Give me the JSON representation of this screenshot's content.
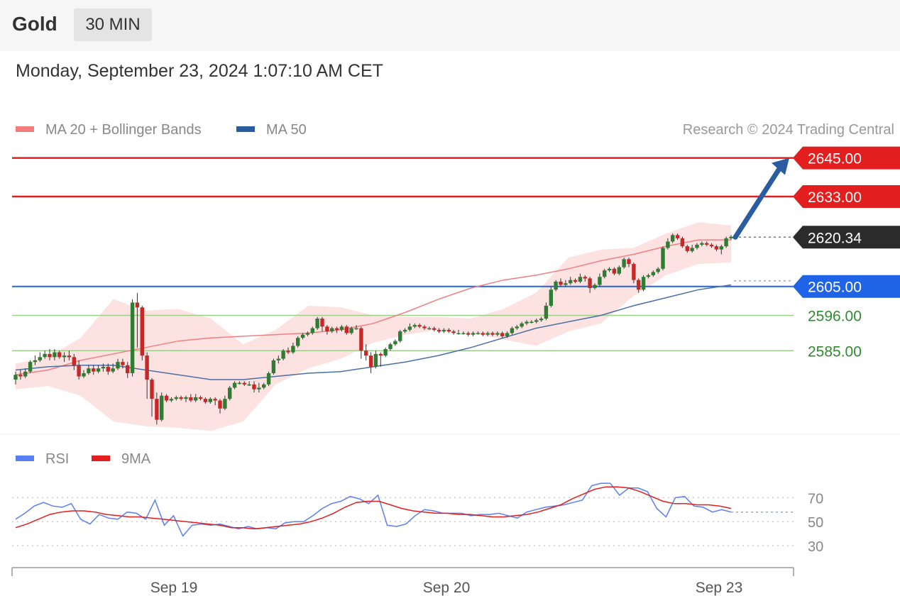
{
  "header": {
    "instrument": "Gold",
    "timeframe": "30 MIN"
  },
  "timestamp": "Monday, September 23, 2024 1:07:10 AM CET",
  "legend": {
    "bollinger": "MA 20 + Bollinger Bands",
    "ma50": "MA 50",
    "rsi": "RSI",
    "rsi_ma": "9MA"
  },
  "credit": "Research © 2024 Trading Central",
  "colors": {
    "bullish": "#2e7d32",
    "bearish": "#c62828",
    "resistance": "#e31e1e",
    "support_pivot": "#1f63e6",
    "support": "#2e8b2e",
    "bands": "#fde2e2",
    "ma20": "#f08080",
    "ma50": "#4a6fa5",
    "rsi": "#5b7ff2",
    "rsi_ma": "#e31e1e",
    "last_price": "#2b2b2b"
  },
  "chart_data": [
    {
      "type": "candlestick",
      "instrument": "Gold",
      "interval": "30 MIN",
      "ylim": [
        2559,
        2650
      ],
      "x_ticks": [
        "Sep 19",
        "Sep 20",
        "Sep 23"
      ],
      "levels": [
        {
          "value": 2645.0,
          "label": "2645.00",
          "kind": "resistance"
        },
        {
          "value": 2633.0,
          "label": "2633.00",
          "kind": "resistance"
        },
        {
          "value": 2620.34,
          "label": "2620.34",
          "kind": "last"
        },
        {
          "value": 2605.0,
          "label": "2605.00",
          "kind": "pivot"
        },
        {
          "value": 2596.0,
          "label": "2596.00",
          "kind": "support"
        },
        {
          "value": 2585.0,
          "label": "2585.00",
          "kind": "support"
        }
      ],
      "forecast": {
        "from": 2620.34,
        "to": 2645.0
      },
      "candles": [
        [
          2576,
          2577.5,
          2574.5,
          2578.5
        ],
        [
          2577.5,
          2577,
          2576,
          2579
        ],
        [
          2577,
          2578.5,
          2576.5,
          2579.5
        ],
        [
          2578.5,
          2581.5,
          2578,
          2582
        ],
        [
          2581.5,
          2582,
          2580.5,
          2583.5
        ],
        [
          2582,
          2583,
          2581.5,
          2584.5
        ],
        [
          2583,
          2584,
          2582.5,
          2585
        ],
        [
          2584,
          2583,
          2582,
          2585.5
        ],
        [
          2583,
          2584.5,
          2582,
          2585.5
        ],
        [
          2584.5,
          2583,
          2582.5,
          2585
        ],
        [
          2583,
          2583.5,
          2581.5,
          2584.5
        ],
        [
          2583.5,
          2583,
          2582,
          2585
        ],
        [
          2583,
          2580.5,
          2579,
          2584
        ],
        [
          2580.5,
          2577,
          2576,
          2582
        ],
        [
          2577,
          2578,
          2576.5,
          2579
        ],
        [
          2578,
          2579.5,
          2577.5,
          2580.5
        ],
        [
          2579.5,
          2578.5,
          2577.5,
          2580.5
        ],
        [
          2578.5,
          2579.5,
          2578,
          2580.5
        ],
        [
          2579.5,
          2580,
          2578.5,
          2581
        ],
        [
          2580,
          2578.5,
          2577.5,
          2581
        ],
        [
          2578.5,
          2579.5,
          2578,
          2581
        ],
        [
          2579.5,
          2581.5,
          2579,
          2582.5
        ],
        [
          2581.5,
          2580.5,
          2579.5,
          2582.5
        ],
        [
          2580.5,
          2578,
          2576.5,
          2581.5
        ],
        [
          2578,
          2600,
          2577,
          2601
        ],
        [
          2600,
          2598.5,
          2586,
          2603
        ],
        [
          2598.5,
          2583.5,
          2582,
          2599
        ],
        [
          2583.5,
          2576,
          2570,
          2584.5
        ],
        [
          2576,
          2570,
          2564.5,
          2576.5
        ],
        [
          2570,
          2563.5,
          2562,
          2572
        ],
        [
          2563.5,
          2571,
          2563,
          2572
        ],
        [
          2571,
          2569.5,
          2569,
          2571.5
        ],
        [
          2569.5,
          2570,
          2569,
          2570.5
        ],
        [
          2570,
          2570.5,
          2569.5,
          2571
        ],
        [
          2570.5,
          2570,
          2569.5,
          2571
        ],
        [
          2570,
          2570.5,
          2569,
          2571
        ],
        [
          2570.5,
          2569.5,
          2569,
          2571.5
        ],
        [
          2569.5,
          2570.5,
          2569,
          2571.5
        ],
        [
          2570.5,
          2570,
          2569.5,
          2571
        ],
        [
          2570,
          2569,
          2568.5,
          2570.5
        ],
        [
          2569,
          2570,
          2568.5,
          2570.5
        ],
        [
          2570,
          2569.5,
          2568,
          2570.5
        ],
        [
          2569.5,
          2567,
          2565.5,
          2570
        ],
        [
          2567,
          2570,
          2566.5,
          2571
        ],
        [
          2570,
          2573.5,
          2569.5,
          2574
        ],
        [
          2573.5,
          2575,
          2573,
          2575.5
        ],
        [
          2575,
          2575,
          2574.5,
          2575.5
        ],
        [
          2575,
          2574.5,
          2574,
          2575.5
        ],
        [
          2574.5,
          2574.5,
          2574,
          2575.5
        ],
        [
          2574.5,
          2573,
          2572,
          2575.5
        ],
        [
          2573,
          2573.5,
          2572,
          2575
        ],
        [
          2573.5,
          2574.5,
          2573,
          2575
        ],
        [
          2574.5,
          2578,
          2574,
          2578.5
        ],
        [
          2578,
          2582,
          2577.5,
          2582.5
        ],
        [
          2582,
          2582.5,
          2581,
          2583.5
        ],
        [
          2582.5,
          2585,
          2582,
          2585.5
        ],
        [
          2585,
          2584.5,
          2584,
          2586
        ],
        [
          2584.5,
          2586.5,
          2584,
          2587.5
        ],
        [
          2586.5,
          2589,
          2586,
          2589.5
        ],
        [
          2589,
          2590,
          2588.5,
          2590.5
        ],
        [
          2590,
          2590.5,
          2589.5,
          2591
        ],
        [
          2590.5,
          2592,
          2590,
          2592.5
        ],
        [
          2592,
          2595,
          2591.5,
          2595.5
        ],
        [
          2595,
          2592.5,
          2591,
          2595.5
        ],
        [
          2592.5,
          2591,
          2590,
          2593
        ],
        [
          2591,
          2592,
          2590.5,
          2592.5
        ],
        [
          2592,
          2591.5,
          2590.5,
          2592.5
        ],
        [
          2591.5,
          2592.5,
          2591,
          2593
        ],
        [
          2592.5,
          2590.5,
          2590,
          2593
        ],
        [
          2590.5,
          2592,
          2590,
          2592.5
        ],
        [
          2592,
          2592,
          2591.5,
          2593
        ],
        [
          2592,
          2585,
          2582.5,
          2592.5
        ],
        [
          2585,
          2583.5,
          2582,
          2587
        ],
        [
          2583.5,
          2580,
          2578,
          2584.5
        ],
        [
          2580,
          2584,
          2579.5,
          2585
        ],
        [
          2584,
          2583.5,
          2580,
          2584.5
        ],
        [
          2583.5,
          2585.5,
          2583,
          2586
        ],
        [
          2585.5,
          2587,
          2585,
          2587.5
        ],
        [
          2587,
          2588,
          2586.5,
          2588.5
        ],
        [
          2588,
          2591,
          2587.5,
          2591.5
        ],
        [
          2591,
          2591.5,
          2590.5,
          2592
        ],
        [
          2591.5,
          2592.5,
          2591,
          2593.5
        ],
        [
          2592.5,
          2593,
          2592,
          2593.5
        ],
        [
          2593,
          2592.5,
          2592,
          2593.5
        ],
        [
          2592.5,
          2592,
          2591.5,
          2593
        ],
        [
          2592,
          2592,
          2591.5,
          2592.5
        ],
        [
          2592,
          2591.5,
          2591,
          2592.5
        ],
        [
          2591.5,
          2591,
          2590.5,
          2592
        ],
        [
          2591,
          2591.5,
          2590.5,
          2592
        ],
        [
          2591.5,
          2591,
          2590.5,
          2592
        ],
        [
          2591,
          2590.5,
          2590,
          2591.5
        ],
        [
          2590.5,
          2590.5,
          2590,
          2591.5
        ],
        [
          2590.5,
          2590.5,
          2590,
          2591
        ],
        [
          2590.5,
          2590,
          2589.5,
          2591
        ],
        [
          2590,
          2590.5,
          2589.5,
          2591
        ],
        [
          2590.5,
          2590.5,
          2590,
          2591
        ],
        [
          2590.5,
          2590,
          2589.5,
          2591
        ],
        [
          2590,
          2590.5,
          2589.5,
          2591
        ],
        [
          2590.5,
          2590,
          2589.5,
          2591
        ],
        [
          2590,
          2590.5,
          2589.5,
          2591
        ],
        [
          2590.5,
          2589.5,
          2589,
          2591
        ],
        [
          2589.5,
          2590.5,
          2589,
          2591
        ],
        [
          2590.5,
          2592,
          2590,
          2592.5
        ],
        [
          2592,
          2592.5,
          2591.5,
          2593
        ],
        [
          2592.5,
          2593.5,
          2592,
          2594
        ],
        [
          2593.5,
          2594,
          2593,
          2594.5
        ],
        [
          2594,
          2594,
          2593.5,
          2594.5
        ],
        [
          2594,
          2594.5,
          2593.5,
          2595
        ],
        [
          2594.5,
          2595,
          2594,
          2595.5
        ],
        [
          2595,
          2599,
          2594.5,
          2600
        ],
        [
          2599,
          2604,
          2598.5,
          2605
        ],
        [
          2604,
          2606.5,
          2603.5,
          2607
        ],
        [
          2606.5,
          2605.5,
          2605,
          2607.5
        ],
        [
          2605.5,
          2606,
          2605,
          2607
        ],
        [
          2606,
          2607,
          2605.5,
          2608
        ],
        [
          2607,
          2606.5,
          2606,
          2607.5
        ],
        [
          2606.5,
          2608,
          2606,
          2609
        ],
        [
          2608,
          2607.5,
          2606.5,
          2608.5
        ],
        [
          2607.5,
          2604.5,
          2603,
          2608
        ],
        [
          2604.5,
          2605.5,
          2604,
          2606
        ],
        [
          2605.5,
          2608,
          2605,
          2609
        ],
        [
          2608,
          2610,
          2607.5,
          2610.5
        ],
        [
          2610,
          2610.5,
          2609.5,
          2611
        ],
        [
          2610.5,
          2609,
          2608.5,
          2611
        ],
        [
          2609,
          2611,
          2608.5,
          2611.5
        ],
        [
          2611,
          2613.5,
          2610.5,
          2614
        ],
        [
          2613.5,
          2612,
          2611,
          2614
        ],
        [
          2612,
          2607,
          2606,
          2612.5
        ],
        [
          2607,
          2604,
          2603,
          2607.5
        ],
        [
          2604,
          2608,
          2603.5,
          2608.5
        ],
        [
          2608,
          2608.5,
          2607.5,
          2609
        ],
        [
          2608.5,
          2609.5,
          2608,
          2610
        ],
        [
          2609.5,
          2610.5,
          2609,
          2611
        ],
        [
          2610.5,
          2617,
          2610,
          2617.5
        ],
        [
          2617,
          2619,
          2616.5,
          2620
        ],
        [
          2619,
          2621,
          2618.5,
          2621.5
        ],
        [
          2621,
          2620,
          2619.5,
          2621.5
        ],
        [
          2620,
          2617.5,
          2617,
          2620.5
        ],
        [
          2617.5,
          2616,
          2615.5,
          2618
        ],
        [
          2616,
          2617,
          2615.5,
          2618
        ],
        [
          2617,
          2618,
          2616.5,
          2618.5
        ],
        [
          2618,
          2618.5,
          2617.5,
          2619
        ],
        [
          2618.5,
          2618,
          2617.5,
          2619
        ],
        [
          2618,
          2617.5,
          2617,
          2618.5
        ],
        [
          2617.5,
          2616.5,
          2616,
          2618
        ],
        [
          2616.5,
          2617.5,
          2615,
          2618
        ],
        [
          2617.5,
          2620,
          2617,
          2620.5
        ],
        [
          2620,
          2620.5,
          2619.5,
          2621
        ]
      ],
      "ma20": [
        2577.5,
        2579,
        2582,
        2584,
        2586,
        2588,
        2589,
        2589.5,
        2590,
        2590.5,
        2591.5,
        2593.5,
        2597,
        2601,
        2604.5,
        2607,
        2608.5,
        2610.5,
        2613,
        2615,
        2617.5,
        2619.5,
        2619.5
      ],
      "bb_upper": [
        2581,
        2583,
        2589,
        2601,
        2597.5,
        2598,
        2595,
        2587,
        2591.5,
        2599,
        2598.5,
        2596,
        2595.5,
        2595.5,
        2595,
        2598,
        2603,
        2614,
        2616.5,
        2617,
        2621.5,
        2625,
        2624
      ],
      "bb_lower": [
        2573,
        2574,
        2571,
        2563,
        2561.5,
        2561,
        2560,
        2563,
        2574.5,
        2579.5,
        2582.5,
        2587.5,
        2590,
        2591.5,
        2590.5,
        2588.5,
        2586.5,
        2591,
        2593.5,
        2602,
        2608.5,
        2612,
        2612.5
      ],
      "ma50": [
        2579,
        2580,
        2580.5,
        2580.5,
        2579,
        2577.5,
        2576,
        2576,
        2577,
        2578,
        2578.5,
        2580,
        2581.5,
        2583.5,
        2586,
        2589,
        2592,
        2594,
        2596,
        2599,
        2601.5,
        2604,
        2605.5
      ],
      "rsi_panel": {
        "ylim": [
          20,
          85
        ],
        "ticks": [
          70,
          50,
          30
        ],
        "rsi": [
          52,
          57,
          63,
          66,
          63,
          62,
          65,
          52,
          48,
          56,
          53,
          52,
          58,
          57,
          52,
          68,
          47,
          55,
          38,
          47,
          48,
          47,
          48,
          46,
          44,
          46,
          44,
          45,
          44,
          49,
          50,
          50,
          55,
          61,
          65,
          67,
          71,
          69,
          65,
          72,
          47,
          46,
          48,
          55,
          60,
          59,
          57,
          57,
          57,
          55,
          56,
          56,
          57,
          55,
          53,
          58,
          60,
          62,
          63,
          64,
          66,
          68,
          80,
          82,
          82,
          72,
          78,
          78,
          75,
          61,
          54,
          70,
          71,
          63,
          62,
          58,
          60,
          58
        ],
        "ma9": [
          45,
          48,
          52,
          56,
          58,
          59,
          59,
          58,
          56,
          55,
          54,
          54,
          53,
          52,
          51,
          50,
          49,
          48,
          47,
          45,
          45,
          44,
          45,
          46,
          47,
          48,
          50,
          53,
          57,
          62,
          66,
          67,
          67,
          64,
          61,
          59,
          58,
          57,
          57,
          56,
          56,
          55,
          54,
          54,
          55,
          56,
          58,
          61,
          64,
          69,
          73,
          77,
          79,
          79,
          78,
          75,
          71,
          67,
          65,
          65,
          64,
          64,
          63,
          61
        ]
      }
    }
  ]
}
